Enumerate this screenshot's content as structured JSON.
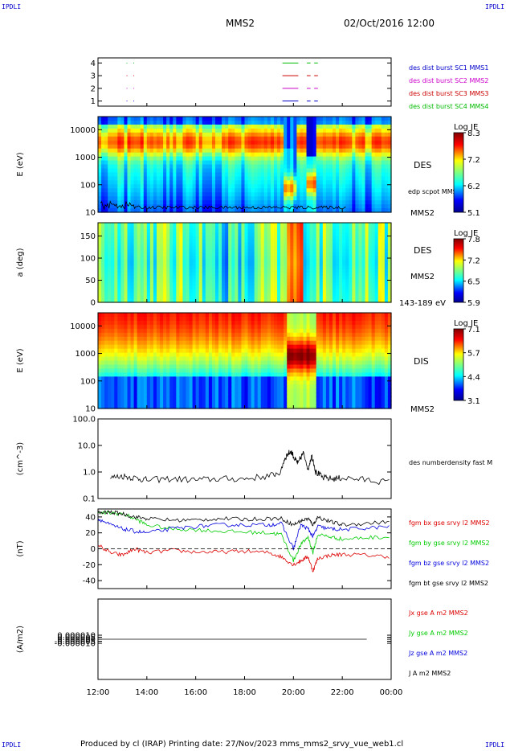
{
  "header": {
    "left_corner": "IPDLI",
    "right_corner": "IPDLI",
    "spacecraft": "MMS2",
    "datetime": "02/Oct/2016 12:00"
  },
  "footer": {
    "text": "Produced by cl (IRAP)   Printing date: 27/Nov/2023   mms_mms2_srvy_vue_web1.cl",
    "left_corner": "IPDLI",
    "right_corner": "IPDLI"
  },
  "time_axis": {
    "ticks": [
      "12:00",
      "14:00",
      "16:00",
      "18:00",
      "20:00",
      "22:00",
      "00:00"
    ],
    "start_hour": 12,
    "end_hour": 24
  },
  "colors": {
    "sc1": "#0000cc",
    "sc2": "#cc00cc",
    "sc3": "#cc0000",
    "sc4": "#00bb00",
    "red": "#dd0000",
    "green": "#00cc00",
    "blue": "#0000dd",
    "black": "#000000"
  },
  "chart_data": [
    {
      "id": "burst",
      "type": "scatter",
      "yticks": [
        "4",
        "3",
        "2",
        "1"
      ],
      "ylim": [
        0.6,
        4.4
      ],
      "legend": [
        {
          "text": "des dist burst SC1 MMS1",
          "color": "#0000cc"
        },
        {
          "text": "des dist burst SC2 MMS2",
          "color": "#cc00cc"
        },
        {
          "text": "des dist burst SC3 MMS3",
          "color": "#cc0000"
        },
        {
          "text": "des dist burst SC4 MMS4",
          "color": "#00bb00"
        }
      ],
      "intervals": [
        {
          "level": 4,
          "color": "#00bb00",
          "segments": [
            [
              13.17,
              13.2
            ],
            [
              13.45,
              13.48
            ],
            [
              19.55,
              20.2
            ],
            [
              20.55,
              20.7
            ],
            [
              20.85,
              21.0
            ]
          ]
        },
        {
          "level": 3,
          "color": "#cc0000",
          "segments": [
            [
              13.17,
              13.2
            ],
            [
              13.45,
              13.48
            ],
            [
              19.55,
              20.2
            ],
            [
              20.55,
              20.7
            ],
            [
              20.85,
              21.0
            ]
          ]
        },
        {
          "level": 2,
          "color": "#cc00cc",
          "segments": [
            [
              13.17,
              13.2
            ],
            [
              13.45,
              13.48
            ],
            [
              19.55,
              20.2
            ],
            [
              20.55,
              20.7
            ],
            [
              20.85,
              21.0
            ]
          ]
        },
        {
          "level": 1,
          "color": "#0000cc",
          "segments": [
            [
              13.17,
              13.2
            ],
            [
              13.45,
              13.48
            ],
            [
              19.55,
              20.2
            ],
            [
              20.55,
              20.7
            ],
            [
              20.85,
              21.0
            ]
          ]
        }
      ]
    },
    {
      "id": "des_energy",
      "type": "heatmap",
      "ylabel": "E (eV)",
      "yscale": "log",
      "ylim": [
        10,
        30000
      ],
      "yticks": [
        "10000",
        "1000",
        "100",
        "10"
      ],
      "label_instrument": "DES",
      "label_overlay": "edp scpot MMS2",
      "label_sc": "MMS2",
      "colorbar": {
        "title": "Log JE",
        "max": "8.3",
        "mid": "6.2",
        "min": "5.1",
        "ticks": [
          "8.3",
          "7.2",
          "6.2",
          "5.1"
        ]
      }
    },
    {
      "id": "des_pitch",
      "type": "heatmap",
      "ylabel": "a (deg)",
      "ylim": [
        0,
        180
      ],
      "yticks": [
        "150",
        "100",
        "50",
        "0"
      ],
      "label_instrument": "DES",
      "label_sc": "MMS2",
      "label_energy": "143-189 eV",
      "colorbar": {
        "title": "Log JE",
        "ticks": [
          "7.8",
          "7.2",
          "6.5",
          "5.9"
        ]
      }
    },
    {
      "id": "dis_energy",
      "type": "heatmap",
      "ylabel": "E (eV)",
      "yscale": "log",
      "ylim": [
        10,
        30000
      ],
      "yticks": [
        "10000",
        "1000",
        "100",
        "10"
      ],
      "label_instrument": "DIS",
      "label_sc": "MMS2",
      "colorbar": {
        "title": "Log JE",
        "ticks": [
          "7.1",
          "5.7",
          "4.4",
          "3.1"
        ]
      }
    },
    {
      "id": "density",
      "type": "line",
      "ylabel": "(cm^-3)",
      "yscale": "log",
      "ylim": [
        0.1,
        100
      ],
      "yticks": [
        "100.0",
        "10.0",
        "1.0",
        "0.1"
      ],
      "legend": [
        {
          "text": "des numberdensity fast M",
          "color": "#000000"
        }
      ],
      "series": [
        {
          "name": "des numberdensity fast M",
          "x": [
            12.5,
            13.0,
            13.5,
            14.0,
            15.0,
            16.0,
            17.0,
            18.0,
            19.0,
            19.5,
            19.7,
            19.9,
            20.05,
            20.2,
            20.4,
            20.6,
            20.75,
            20.9,
            21.2,
            21.6,
            22.0,
            23.0,
            24.0
          ],
          "y": [
            0.6,
            0.7,
            0.6,
            0.5,
            0.55,
            0.5,
            0.55,
            0.55,
            0.7,
            1.0,
            4.0,
            6.0,
            3.0,
            2.0,
            5.0,
            1.0,
            4.0,
            1.0,
            0.6,
            0.55,
            0.6,
            0.5,
            0.4
          ]
        }
      ]
    },
    {
      "id": "bfield",
      "type": "line",
      "ylabel": "(nT)",
      "ylim": [
        -50,
        50
      ],
      "yticks": [
        "40",
        "20",
        "0",
        "-20",
        "-40"
      ],
      "legend": [
        {
          "text": "fgm bx gse srvy l2 MMS2",
          "color": "#dd0000"
        },
        {
          "text": "fgm by gse srvy l2 MMS2",
          "color": "#00cc00"
        },
        {
          "text": "fgm bz gse srvy l2 MMS2",
          "color": "#0000dd"
        },
        {
          "text": "fgm bt gse srvy l2 MMS2",
          "color": "#000000"
        }
      ],
      "series": [
        {
          "name": "fgm bx gse srvy l2 MMS2",
          "color": "#dd0000",
          "x": [
            12,
            12.5,
            13.0,
            13.5,
            14.0,
            15.0,
            16.0,
            17.0,
            18.0,
            19.0,
            19.5,
            20.0,
            20.3,
            20.6,
            20.8,
            21.0,
            21.5,
            22.0,
            23.0,
            24.0
          ],
          "y": [
            5,
            -5,
            -8,
            0,
            -5,
            -2,
            -4,
            -4,
            -3,
            -5,
            -10,
            -20,
            -15,
            -10,
            -28,
            -12,
            -8,
            -7,
            -8,
            -10
          ]
        },
        {
          "name": "fgm by gse srvy l2 MMS2",
          "color": "#00cc00",
          "x": [
            12,
            12.5,
            13.0,
            13.5,
            14.0,
            15.0,
            16.0,
            17.0,
            18.0,
            19.0,
            19.5,
            20.0,
            20.3,
            20.6,
            20.8,
            21.0,
            21.5,
            22.0,
            23.0,
            24.0
          ],
          "y": [
            45,
            45,
            44,
            38,
            30,
            25,
            24,
            22,
            21,
            20,
            18,
            -15,
            5,
            15,
            -5,
            18,
            15,
            12,
            14,
            15
          ]
        },
        {
          "name": "fgm bz gse srvy l2 MMS2",
          "color": "#0000dd",
          "x": [
            12,
            12.5,
            13.0,
            13.5,
            14.0,
            15.0,
            16.0,
            17.0,
            18.0,
            19.0,
            19.5,
            20.0,
            20.3,
            20.6,
            20.8,
            21.0,
            21.5,
            22.0,
            23.0,
            24.0
          ],
          "y": [
            38,
            30,
            25,
            22,
            20,
            25,
            28,
            30,
            30,
            30,
            32,
            0,
            30,
            25,
            15,
            28,
            25,
            24,
            26,
            28
          ]
        },
        {
          "name": "fgm bt gse srvy l2 MMS2",
          "color": "#000000",
          "x": [
            12,
            12.5,
            13.0,
            13.5,
            14.0,
            15.0,
            16.0,
            17.0,
            18.0,
            19.0,
            19.5,
            20.0,
            20.3,
            20.6,
            20.8,
            21.0,
            21.5,
            22.0,
            23.0,
            24.0
          ],
          "y": [
            45,
            46,
            44,
            40,
            38,
            36,
            36,
            38,
            37,
            38,
            38,
            30,
            35,
            38,
            30,
            40,
            34,
            30,
            32,
            34
          ]
        }
      ]
    },
    {
      "id": "current",
      "type": "line",
      "ylabel": "(A/m2)",
      "ylim": [
        -0.0001,
        0.0001
      ],
      "yticks": [
        "0.000010",
        "0.000005",
        "0.000000",
        "-0.000005",
        "-0.000010"
      ],
      "legend": [
        {
          "text": "Jx gse A m2 MMS2",
          "color": "#dd0000"
        },
        {
          "text": "Jy gse A m2 MMS2",
          "color": "#00cc00"
        },
        {
          "text": "Jz gse A m2 MMS2",
          "color": "#0000dd"
        },
        {
          "text": "J A m2 MMS2",
          "color": "#000000"
        }
      ],
      "series": [
        {
          "name": "J A m2 MMS2",
          "x": [
            12,
            24
          ],
          "y": [
            0,
            0
          ]
        }
      ]
    }
  ]
}
